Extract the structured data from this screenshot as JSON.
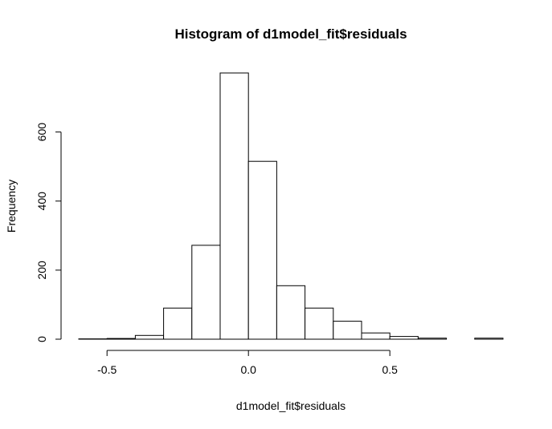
{
  "chart_data": {
    "type": "bar",
    "title": "Histogram of d1model_fit$residuals",
    "xlabel": "d1model_fit$residuals",
    "ylabel": "Frequency",
    "bin_edges": [
      -0.6,
      -0.5,
      -0.4,
      -0.3,
      -0.2,
      -0.1,
      0.0,
      0.1,
      0.2,
      0.3,
      0.4,
      0.5,
      0.6,
      0.7,
      0.8,
      0.9
    ],
    "counts": [
      1,
      2,
      11,
      90,
      272,
      771,
      515,
      155,
      90,
      52,
      18,
      8,
      3,
      0,
      3
    ],
    "xlim": [
      -0.6,
      0.9
    ],
    "ylim": [
      0,
      771
    ],
    "x_ticks": [
      -0.5,
      0.0,
      0.5
    ],
    "x_tick_labels": [
      "-0.5",
      "0.0",
      "0.5"
    ],
    "y_ticks": [
      0,
      200,
      400,
      600
    ],
    "y_tick_labels": [
      "0",
      "200",
      "400",
      "600"
    ],
    "bar_fill": "#ffffff",
    "bar_stroke": "#000000",
    "grid": false
  }
}
